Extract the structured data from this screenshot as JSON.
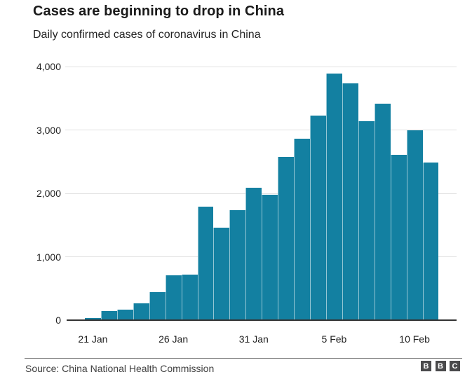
{
  "header": {
    "title": "Cases are beginning to drop in China",
    "subtitle": "Daily confirmed cases of coronavirus in China"
  },
  "chart_data": {
    "type": "bar",
    "title": "Cases are beginning to drop in China",
    "subtitle": "Daily confirmed cases of coronavirus in China",
    "categories": [
      "21 Jan",
      "22 Jan",
      "23 Jan",
      "24 Jan",
      "25 Jan",
      "26 Jan",
      "27 Jan",
      "28 Jan",
      "29 Jan",
      "30 Jan",
      "31 Jan",
      "1 Feb",
      "2 Feb",
      "3 Feb",
      "4 Feb",
      "5 Feb",
      "6 Feb",
      "7 Feb",
      "8 Feb",
      "9 Feb",
      "10 Feb",
      "11 Feb"
    ],
    "values": [
      30,
      140,
      170,
      260,
      440,
      710,
      720,
      1790,
      1460,
      1740,
      2090,
      1980,
      2580,
      2860,
      3230,
      3890,
      3740,
      3140,
      3410,
      2610,
      3000,
      2490
    ],
    "xlabel": "",
    "ylabel": "",
    "ylim": [
      0,
      4000
    ],
    "y_ticks": [
      0,
      1000,
      2000,
      3000,
      4000
    ],
    "y_tick_labels": [
      "0",
      "1,000",
      "2,000",
      "3,000",
      "4,000"
    ],
    "x_tick_indices": [
      0,
      5,
      10,
      15,
      20
    ],
    "x_tick_labels": [
      "21 Jan",
      "26 Jan",
      "31 Jan",
      "5 Feb",
      "10 Feb"
    ],
    "grid": true,
    "legend_position": "none"
  },
  "footer": {
    "source": "Source: China National Health Commission",
    "logo_letters": [
      "B",
      "B",
      "C"
    ]
  },
  "colors": {
    "bar": "#1380A1",
    "bar_separator": "rgba(255,255,255,0.55)",
    "grid_line": "#e1e1e1",
    "axis_line": "#333333",
    "text": "#222222",
    "divider": "#808080",
    "source_text": "#404040",
    "logo_background": "#4a4a4c",
    "logo_text": "#ffffff"
  }
}
